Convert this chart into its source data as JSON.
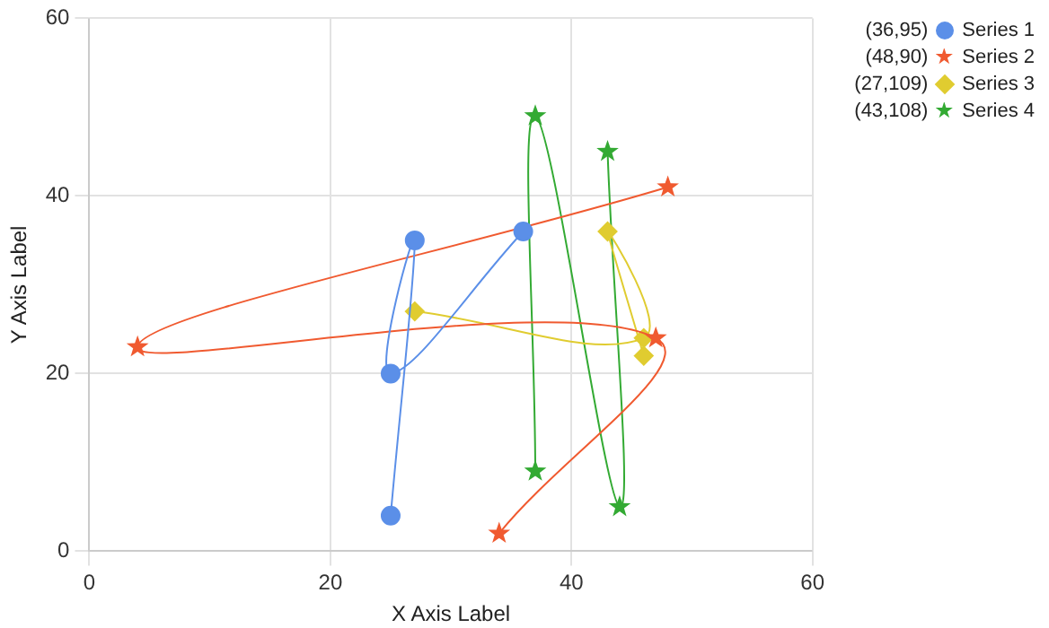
{
  "chart_data": {
    "type": "line",
    "xlabel": "X Axis Label",
    "ylabel": "Y Axis Label",
    "xlim": [
      0,
      60
    ],
    "xticks": [
      0,
      20,
      40,
      60
    ],
    "ylim": [
      0,
      60
    ],
    "yticks": [
      0,
      20,
      40,
      60
    ],
    "grid": true,
    "legend": "top right",
    "line_style": "solid",
    "annotations": [
      "(36,95)",
      "(48,90)",
      "(27,109)",
      "(43,108)"
    ],
    "series": [
      {
        "name": "Series 1",
        "color": "#5b8fe8",
        "marker": "circle",
        "x": [
          25,
          27,
          25,
          36
        ],
        "values": [
          4,
          35,
          20,
          36
        ]
      },
      {
        "name": "Series 2",
        "color": "#f05a30",
        "marker": "star",
        "x": [
          48,
          4,
          47,
          34
        ],
        "values": [
          41,
          23,
          24,
          2
        ]
      },
      {
        "name": "Series 3",
        "color": "#e0cc30",
        "marker": "diamond",
        "x": [
          27,
          46,
          43,
          46
        ],
        "values": [
          27,
          24,
          36,
          22
        ]
      },
      {
        "name": "Series 4",
        "color": "#33aa33",
        "marker": "star",
        "x": [
          37,
          37,
          44,
          43
        ],
        "values": [
          9,
          49,
          5,
          45
        ]
      }
    ]
  }
}
